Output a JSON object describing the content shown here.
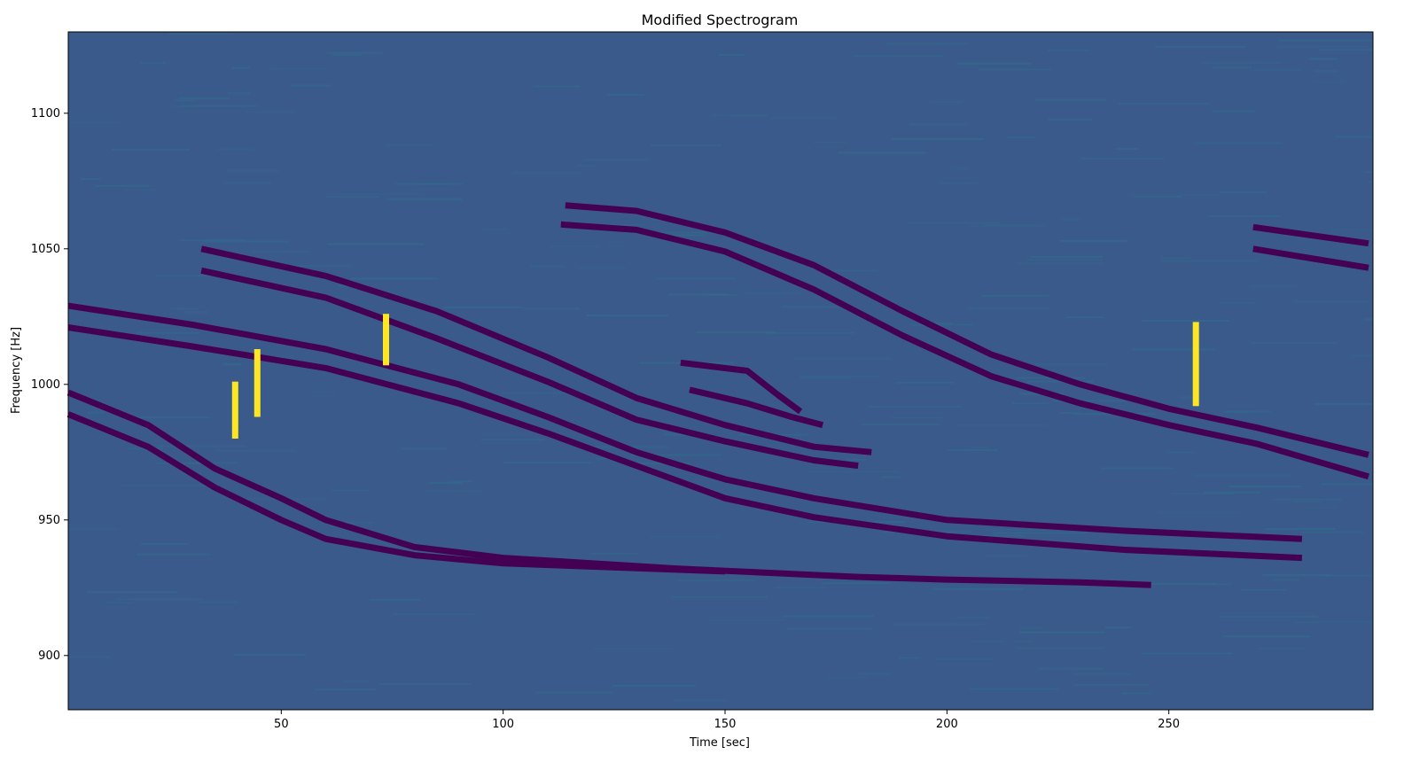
{
  "chart_data": {
    "type": "heatmap",
    "title": "Modified Spectrogram",
    "xlabel": "Time [sec]",
    "ylabel": "Frequency [Hz]",
    "xlim": [
      2,
      296
    ],
    "ylim": [
      880,
      1130
    ],
    "xticks": [
      50,
      100,
      150,
      200,
      250
    ],
    "yticks": [
      900,
      950,
      1000,
      1050,
      1100
    ],
    "grid": false,
    "colors": {
      "background": "#3b5a8c",
      "noise": "#2f6f8c",
      "trace": "#440154",
      "highlight": "#fde725",
      "teal": "#21918c"
    },
    "traces": [
      {
        "name": "s1",
        "points": [
          [
            2,
            997
          ],
          [
            20,
            985
          ],
          [
            35,
            969
          ],
          [
            50,
            958
          ],
          [
            60,
            950
          ],
          [
            80,
            940
          ],
          [
            100,
            936
          ],
          [
            140,
            932
          ],
          [
            180,
            929
          ],
          [
            200,
            928
          ],
          [
            230,
            927
          ],
          [
            246,
            926
          ]
        ]
      },
      {
        "name": "s2",
        "points": [
          [
            2,
            989
          ],
          [
            20,
            977
          ],
          [
            35,
            962
          ],
          [
            50,
            950
          ],
          [
            60,
            943
          ],
          [
            80,
            937
          ],
          [
            100,
            934
          ],
          [
            150,
            931
          ]
        ]
      },
      {
        "name": "s3",
        "points": [
          [
            2,
            1029
          ],
          [
            30,
            1022
          ],
          [
            60,
            1013
          ],
          [
            90,
            1000
          ],
          [
            110,
            988
          ],
          [
            130,
            975
          ],
          [
            150,
            965
          ],
          [
            170,
            958
          ],
          [
            200,
            950
          ],
          [
            240,
            946
          ],
          [
            280,
            943
          ]
        ]
      },
      {
        "name": "s4",
        "points": [
          [
            2,
            1021
          ],
          [
            30,
            1014
          ],
          [
            60,
            1006
          ],
          [
            90,
            993
          ],
          [
            110,
            982
          ],
          [
            130,
            970
          ],
          [
            150,
            958
          ],
          [
            170,
            951
          ],
          [
            200,
            944
          ],
          [
            240,
            939
          ],
          [
            280,
            936
          ]
        ]
      },
      {
        "name": "s5",
        "points": [
          [
            32,
            1050
          ],
          [
            60,
            1040
          ],
          [
            85,
            1027
          ],
          [
            110,
            1010
          ],
          [
            130,
            995
          ],
          [
            150,
            985
          ],
          [
            170,
            977
          ],
          [
            183,
            975
          ]
        ]
      },
      {
        "name": "s6",
        "points": [
          [
            32,
            1042
          ],
          [
            60,
            1032
          ],
          [
            85,
            1017
          ],
          [
            110,
            1001
          ],
          [
            130,
            987
          ],
          [
            150,
            979
          ],
          [
            170,
            972
          ],
          [
            180,
            970
          ]
        ]
      },
      {
        "name": "s7",
        "points": [
          [
            113,
            1059
          ],
          [
            130,
            1057
          ],
          [
            150,
            1049
          ],
          [
            170,
            1035
          ],
          [
            190,
            1018
          ],
          [
            210,
            1003
          ],
          [
            230,
            993
          ],
          [
            250,
            985
          ],
          [
            270,
            978
          ],
          [
            295,
            966
          ]
        ]
      },
      {
        "name": "s8",
        "points": [
          [
            114,
            1066
          ],
          [
            130,
            1064
          ],
          [
            150,
            1056
          ],
          [
            170,
            1044
          ],
          [
            190,
            1027
          ],
          [
            210,
            1011
          ],
          [
            230,
            1000
          ],
          [
            250,
            991
          ],
          [
            270,
            984
          ],
          [
            295,
            974
          ]
        ]
      },
      {
        "name": "s9",
        "points": [
          [
            269,
            1058
          ],
          [
            295,
            1052
          ]
        ]
      },
      {
        "name": "s10",
        "points": [
          [
            269,
            1050
          ],
          [
            295,
            1043
          ]
        ]
      },
      {
        "name": "s11",
        "points": [
          [
            140,
            1008
          ],
          [
            155,
            1005
          ],
          [
            162,
            996
          ],
          [
            167,
            990
          ]
        ]
      },
      {
        "name": "s12",
        "points": [
          [
            142,
            998
          ],
          [
            155,
            993
          ],
          [
            165,
            988
          ],
          [
            172,
            985
          ]
        ]
      }
    ],
    "highlights": [
      {
        "x": 39.5,
        "y": [
          980,
          1001
        ]
      },
      {
        "x": 44.5,
        "y": [
          988,
          1013
        ]
      },
      {
        "x": 73.5,
        "y": [
          1007,
          1026
        ]
      },
      {
        "x": 256,
        "y": [
          992,
          1023
        ]
      }
    ]
  }
}
